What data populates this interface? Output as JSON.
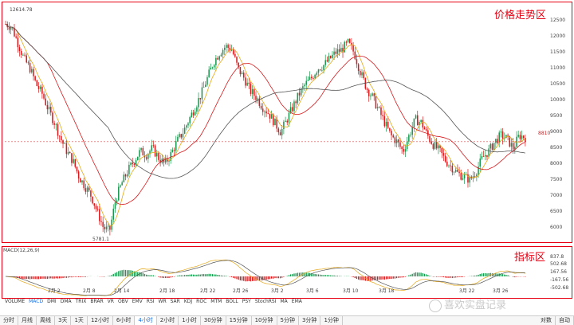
{
  "zones": {
    "price": "价格走势区",
    "indicator": "指标区"
  },
  "price_axis": [
    "12500",
    "12000",
    "11500",
    "11000",
    "10500",
    "10000",
    "9500",
    "9000",
    "8500",
    "8000",
    "7500",
    "7000",
    "6500",
    "6000"
  ],
  "current_price_label": "8810",
  "annotations": {
    "high": "12614.78",
    "low": "5781.1"
  },
  "date_ticks": [
    "2月 2",
    "2月 8",
    "2月 14",
    "2月 18",
    "2月 22",
    "2月 26",
    "3月 2",
    "3月 6",
    "3月 10",
    "3月 18",
    "3月 22",
    "3月 26"
  ],
  "macd": {
    "title": "MACD(12,26,9)",
    "axis": [
      "837.8",
      "502.68",
      "167.56",
      "-167.56",
      "-502.68"
    ]
  },
  "indicator_tabs": [
    "VOLUME",
    "MACD",
    "DMI",
    "DMA",
    "TRIX",
    "BRAR",
    "VR",
    "OBV",
    "EMV",
    "RSI",
    "WR",
    "SAR",
    "KDJ",
    "ROC",
    "MTM",
    "BOLL",
    "PSY",
    "StochRSI",
    "MA",
    "EMA"
  ],
  "active_indicator": "MACD",
  "periods": [
    "分时",
    "月线",
    "周线",
    "3天",
    "1天",
    "12小时",
    "6小时",
    "4小时",
    "2小时",
    "1小时",
    "30分钟",
    "15分钟",
    "10分钟",
    "5分钟",
    "3分钟",
    "1分钟"
  ],
  "active_period": "4小时",
  "right_buttons": [
    "对数",
    "自动"
  ],
  "watermark": "喜欢实盘记录",
  "colors": {
    "up": "#1a9850",
    "down": "#d7191c",
    "frame": "#e60012",
    "ma_fast": "#e6a817",
    "ma_slow": "#555555",
    "ma_mid": "#d7191c"
  },
  "chart_data": {
    "type": "candlestick",
    "y_range": [
      5700,
      12800
    ],
    "close_path": [
      12400,
      12300,
      11800,
      11300,
      11000,
      10500,
      10200,
      9700,
      9300,
      8800,
      8400,
      8100,
      7600,
      7300,
      7000,
      6500,
      6000,
      5900,
      6900,
      7400,
      7800,
      8100,
      8400,
      8300,
      8500,
      8200,
      8000,
      8300,
      8700,
      9000,
      9400,
      9800,
      10200,
      10700,
      11200,
      11500,
      11700,
      11600,
      11000,
      10700,
      10300,
      10100,
      9800,
      9600,
      9300,
      9000,
      9400,
      9800,
      10200,
      10500,
      10700,
      11000,
      11100,
      11300,
      11500,
      11600,
      11800,
      11500,
      10900,
      10400,
      10100,
      9700,
      9300,
      8900,
      8700,
      8400,
      8900,
      9400,
      9300,
      8900,
      8600,
      8400,
      8100,
      7900,
      7700,
      7600,
      7500,
      7800,
      8200,
      8400,
      8700,
      8900,
      8800,
      8500,
      8900,
      8850
    ]
  }
}
